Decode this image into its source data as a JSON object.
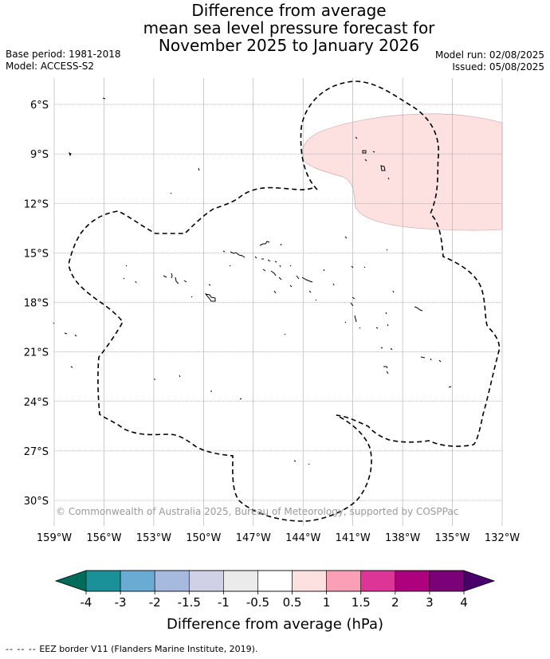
{
  "title": {
    "line1": "Difference from average",
    "line2": "mean sea level pressure forecast for",
    "line3": "November 2025 to January 2026"
  },
  "meta_left": {
    "base_period": "Base period: 1981-2018",
    "model": "Model: ACCESS-S2"
  },
  "meta_right": {
    "model_run": "Model run: 02/08/2025",
    "issued": "Issued: 05/08/2025"
  },
  "map": {
    "lat_labels": [
      "6°S",
      "9°S",
      "12°S",
      "15°S",
      "18°S",
      "21°S",
      "24°S",
      "27°S",
      "30°S"
    ],
    "lon_labels": [
      "159°W",
      "156°W",
      "153°W",
      "150°W",
      "147°W",
      "144°W",
      "141°W",
      "138°W",
      "135°W",
      "132°W"
    ],
    "lat_values": [
      -6,
      -9,
      -12,
      -15,
      -18,
      -21,
      -24,
      -27,
      -30
    ],
    "lon_values": [
      -159,
      -156,
      -153,
      -150,
      -147,
      -144,
      -141,
      -138,
      -135,
      -132
    ],
    "copyright": "© Commonwealth of Australia 2025, Bureau of Meteorology, supported by COSPPac",
    "anomaly_region": {
      "category": "0.5 to 1 hPa",
      "color": "#fde0e0"
    }
  },
  "colorbar": {
    "ticks": [
      "-4",
      "-3",
      "-2",
      "-1.5",
      "-1",
      "-0.5",
      "0.5",
      "1",
      "1.5",
      "2",
      "3",
      "4"
    ],
    "colors": [
      "#1a9199",
      "#6aabd3",
      "#a6badf",
      "#d0d1e6",
      "#ebebeb",
      "#ffffff",
      "#fde0e0",
      "#fa9fb5",
      "#dd3497",
      "#ae017e",
      "#7a0177"
    ],
    "under_color": "#016c59",
    "over_color": "#49006a",
    "label": "Difference from average (hPa)"
  },
  "footer": {
    "legend_symbol": "--  --  --",
    "legend_text": "EEZ border V11 (Flanders Marine Institute, 2019)."
  }
}
